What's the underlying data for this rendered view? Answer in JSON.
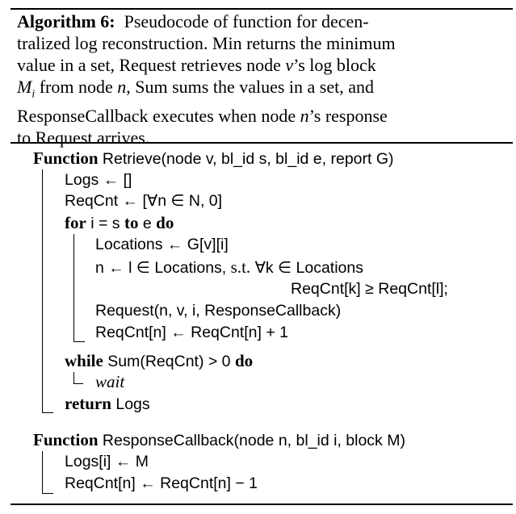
{
  "caption": {
    "label": "Algorithm 6:",
    "line1": "Pseudocode of function for decen-",
    "line2": "tralized log reconstruction. Min returns the minimum",
    "line3_a": "value in a set, Request retrieves node ",
    "line3_v": "v",
    "line3_b": "’s log block",
    "line4_m": "M",
    "line4_i": "i",
    "line4_a": " from node ",
    "line4_n": "n",
    "line4_b": ", Sum sums the values in a set, and",
    "line5_a": "ResponseCallback executes when node ",
    "line5_n": "n",
    "line5_b": "’s response",
    "line6": "to Request arrives."
  },
  "code": {
    "f1_kw": "Function",
    "f1_sig": " Retrieve(node v, bl_id s, bl_id e, report G)",
    "logs_init": "Logs ← []",
    "reqcnt_init": "ReqCnt ← [∀n ∈ N, 0]",
    "for_kw": "for",
    "for_mid": " i = s ",
    "to_kw": "to",
    "for_end": " e ",
    "do_kw": "do",
    "locations": "Locations ← G[v][i]",
    "n_select_a": "n ← l ∈ Locations, ",
    "n_select_st": "s.t.",
    "n_select_b": " ∀k ∈ Locations",
    "n_select_cont": "ReqCnt[k] ≥ ReqCnt[l];",
    "request_call": "Request(n, v, i, ResponseCallback)",
    "reqcnt_inc": "ReqCnt[n] ← ReqCnt[n] + 1",
    "while_kw": "while",
    "while_cond": " Sum(ReqCnt) > 0 ",
    "while_do": "do",
    "wait": "wait",
    "return_kw": "return",
    "return_val": " Logs",
    "f2_kw": "Function",
    "f2_sig": " ResponseCallback(node n, bl_id i, block M)",
    "logs_assign": "Logs[i] ← M",
    "reqcnt_dec": "ReqCnt[n] ← ReqCnt[n] − 1"
  }
}
